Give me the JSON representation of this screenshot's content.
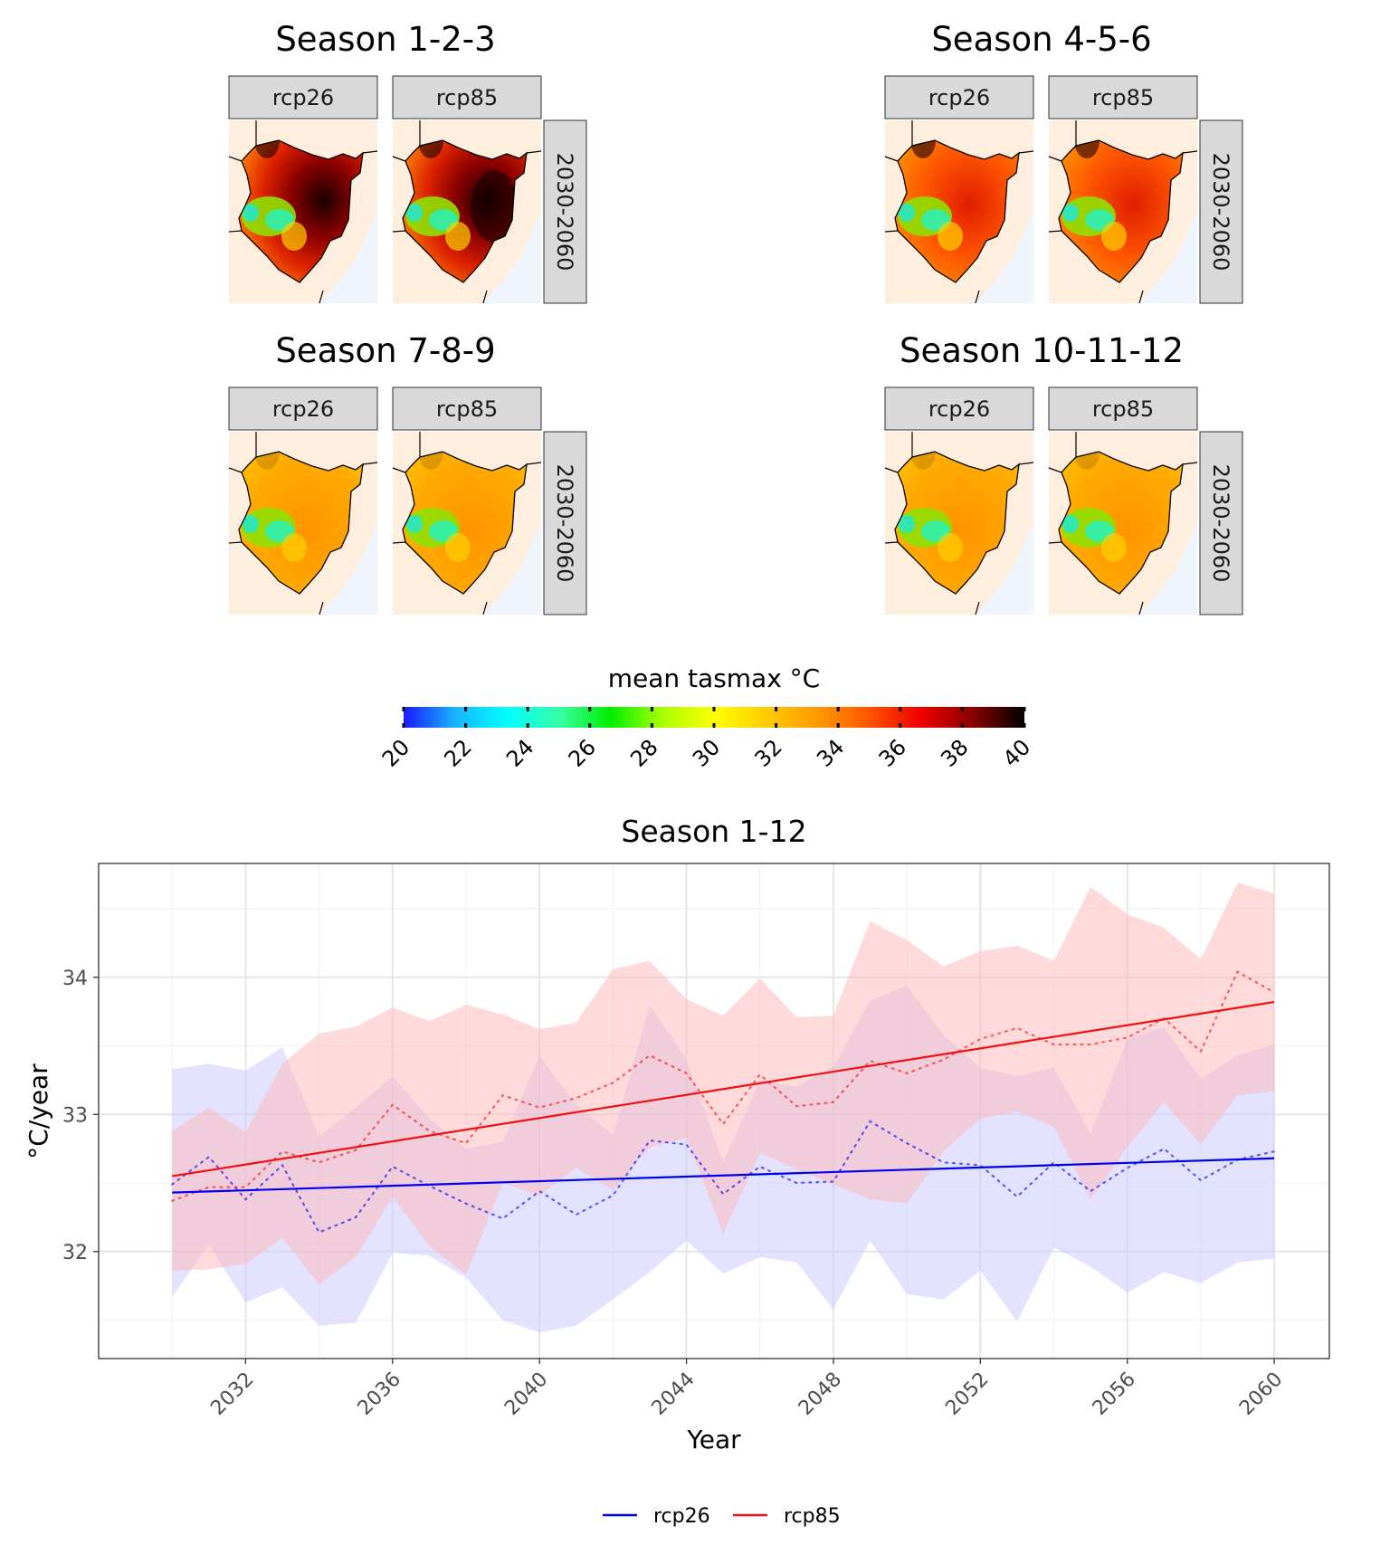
{
  "colors": {
    "rcp26": "#0000ee",
    "rcp85": "#ee1111",
    "rcp26_band": "#c8c8ff",
    "rcp85_band": "#ffb6b6",
    "panel_land": "#feeedd",
    "panel_sea": "#eef5ff",
    "strip_fill": "#d9d9d9",
    "map_scale": [
      "#1a1aff",
      "#18b4ff",
      "#00ffff",
      "#37ffa8",
      "#00ee00",
      "#a8ff00",
      "#ffff00",
      "#ffcc00",
      "#ff9900",
      "#ff5500",
      "#ee0000",
      "#880000",
      "#000000"
    ]
  },
  "icons": {
    "map": "kenya-outline-map"
  },
  "map_panels": [
    {
      "title": "Season 1-2-3",
      "scenarios": [
        "rcp26",
        "rcp85"
      ],
      "period": "2030-2060",
      "pattern": "hot"
    },
    {
      "title": "Season 4-5-6",
      "scenarios": [
        "rcp26",
        "rcp85"
      ],
      "period": "2030-2060",
      "pattern": "warm"
    },
    {
      "title": "Season 7-8-9",
      "scenarios": [
        "rcp26",
        "rcp85"
      ],
      "period": "2030-2060",
      "pattern": "mild"
    },
    {
      "title": "Season 10-11-12",
      "scenarios": [
        "rcp26",
        "rcp85"
      ],
      "period": "2030-2060",
      "pattern": "mild"
    }
  ],
  "colorbar": {
    "title": "mean tasmax °C",
    "ticks": [
      "20",
      "22",
      "24",
      "26",
      "28",
      "30",
      "32",
      "34",
      "36",
      "38",
      "40"
    ],
    "range": [
      20,
      40
    ]
  },
  "chart_data": {
    "type": "line",
    "title": "Season 1-12",
    "xlabel": "Year",
    "ylabel": "°C/year",
    "xlim": [
      2028.0,
      2061.5
    ],
    "ylim": [
      31.22,
      34.83
    ],
    "x_ticks": [
      2032,
      2036,
      2040,
      2044,
      2048,
      2052,
      2056,
      2060
    ],
    "x_minor_ticks": [
      2030,
      2034,
      2038,
      2042,
      2046,
      2050,
      2054,
      2058
    ],
    "y_ticks": [
      32,
      33,
      34
    ],
    "y_minor_ticks": [
      31.5,
      32.5,
      33.5,
      34.5
    ],
    "grid": true,
    "legend_position": "bottom",
    "x": [
      2030,
      2031,
      2032,
      2033,
      2034,
      2035,
      2036,
      2037,
      2038,
      2039,
      2040,
      2041,
      2042,
      2043,
      2044,
      2045,
      2046,
      2047,
      2048,
      2049,
      2050,
      2051,
      2052,
      2053,
      2054,
      2055,
      2056,
      2057,
      2058,
      2059,
      2060
    ],
    "series": [
      {
        "name": "rcp26",
        "mean": [
          32.49,
          32.69,
          32.38,
          32.63,
          32.14,
          32.25,
          32.62,
          32.48,
          32.35,
          32.24,
          32.44,
          32.27,
          32.41,
          32.81,
          32.78,
          32.42,
          32.62,
          32.5,
          32.51,
          32.95,
          32.79,
          32.65,
          32.63,
          32.4,
          32.65,
          32.44,
          32.61,
          32.75,
          32.52,
          32.67,
          32.73
        ],
        "band_low": [
          31.67,
          32.05,
          31.63,
          31.74,
          31.46,
          31.48,
          31.99,
          31.97,
          31.81,
          31.5,
          31.41,
          31.46,
          31.65,
          31.85,
          32.08,
          31.84,
          31.96,
          31.92,
          31.58,
          32.08,
          31.69,
          31.65,
          31.86,
          31.49,
          32.03,
          31.89,
          31.7,
          31.85,
          31.77,
          31.92,
          31.95
        ],
        "band_high": [
          33.33,
          33.37,
          33.32,
          33.49,
          32.84,
          33.05,
          33.28,
          32.97,
          32.75,
          32.8,
          33.43,
          33.07,
          32.85,
          33.8,
          33.4,
          32.65,
          33.25,
          33.2,
          33.35,
          33.83,
          33.94,
          33.58,
          33.34,
          33.28,
          33.34,
          32.86,
          33.55,
          33.64,
          33.26,
          33.43,
          33.51
        ],
        "trend": [
          32.43,
          32.68
        ]
      },
      {
        "name": "rcp85",
        "mean": [
          32.37,
          32.47,
          32.47,
          32.73,
          32.65,
          32.74,
          33.07,
          32.88,
          32.79,
          33.14,
          33.05,
          33.12,
          33.23,
          33.43,
          33.3,
          32.93,
          33.29,
          33.06,
          33.09,
          33.39,
          33.3,
          33.4,
          33.55,
          33.63,
          33.51,
          33.51,
          33.56,
          33.7,
          33.46,
          34.04,
          33.89
        ],
        "band_low": [
          31.86,
          31.87,
          31.91,
          32.1,
          31.76,
          31.96,
          32.4,
          32.04,
          31.83,
          32.5,
          32.41,
          32.61,
          32.45,
          32.76,
          32.83,
          32.13,
          32.72,
          32.6,
          32.49,
          32.38,
          32.35,
          32.73,
          32.97,
          33.02,
          32.91,
          32.38,
          32.76,
          33.09,
          32.78,
          33.14,
          33.17
        ],
        "band_high": [
          32.88,
          33.05,
          32.87,
          33.37,
          33.59,
          33.64,
          33.78,
          33.68,
          33.8,
          33.73,
          33.62,
          33.67,
          34.06,
          34.12,
          33.84,
          33.72,
          33.99,
          33.71,
          33.72,
          34.41,
          34.27,
          34.08,
          34.19,
          34.23,
          34.12,
          34.66,
          34.46,
          34.36,
          34.13,
          34.69,
          34.61
        ],
        "trend": [
          32.55,
          33.82
        ]
      }
    ]
  }
}
